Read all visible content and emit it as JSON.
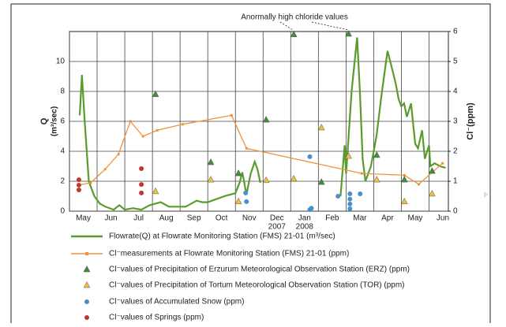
{
  "chart_data": {
    "type": "line",
    "annotation": "Anormally high chloride values",
    "y_label": [
      "Q",
      "(m³/sec)"
    ],
    "y2_label": "Cl⁻(ppm)",
    "xlim": [
      0,
      13.7
    ],
    "xticks": [
      {
        "value": 0,
        "label": "May"
      },
      {
        "value": 1,
        "label": "Jun"
      },
      {
        "value": 2,
        "label": "Jul"
      },
      {
        "value": 3,
        "label": "Aug"
      },
      {
        "value": 4,
        "label": "Sep"
      },
      {
        "value": 5,
        "label": "Oct"
      },
      {
        "value": 6,
        "label": "Nov"
      },
      {
        "value": 7,
        "label": "Dec",
        "year": "2007"
      },
      {
        "value": 8,
        "label": "Jan",
        "year": "2008"
      },
      {
        "value": 9,
        "label": "Feb"
      },
      {
        "value": 10,
        "label": "Mar"
      },
      {
        "value": 11,
        "label": "Apr"
      },
      {
        "value": 12,
        "label": "May"
      },
      {
        "value": 13,
        "label": "Jun"
      }
    ],
    "ylim": [
      0,
      12
    ],
    "yticks": [
      0,
      2,
      4,
      6,
      8,
      10
    ],
    "y2lim": [
      0,
      6
    ],
    "y2ticks": [
      0,
      1,
      2,
      3,
      4,
      5,
      6
    ],
    "grid": true,
    "series": [
      {
        "name": "Flowrate(Q) at Flowrate Monitoring Station (FMS) 21-01 (m³/sec)",
        "color": "#5a9b2e",
        "style": "line",
        "axis": "y",
        "x": [
          0.37,
          0.45,
          0.55,
          0.7,
          0.9,
          1.1,
          1.3,
          1.6,
          1.8,
          2.0,
          2.3,
          2.6,
          2.9,
          3.1,
          3.3,
          3.6,
          3.9,
          4.2,
          4.6,
          4.8,
          5.0,
          5.3,
          5.6,
          5.8,
          6.0,
          6.15,
          6.25,
          6.4,
          6.55,
          6.7,
          6.8,
          6.9,
          7.2,
          9.8,
          9.95,
          10.0,
          10.05,
          10.2,
          10.4,
          10.5,
          10.6,
          10.7,
          10.9,
          11.1,
          11.3,
          11.5,
          11.6,
          11.8,
          11.9,
          12.0,
          12.1,
          12.2,
          12.35,
          12.5,
          12.6,
          12.75,
          12.85,
          13.0,
          13.05,
          13.2,
          13.4,
          13.6
        ],
        "values": [
          6.4,
          9.1,
          6.0,
          2.0,
          1.0,
          0.5,
          0.3,
          0.1,
          0.4,
          0.1,
          0.2,
          0.1,
          0.4,
          0.5,
          0.6,
          0.3,
          0.3,
          0.3,
          0.7,
          0.6,
          0.6,
          0.8,
          1.0,
          1.1,
          1.2,
          1.9,
          2.6,
          1.1,
          2.5,
          3.3,
          2.8,
          1.9,
          null,
          1.0,
          4.4,
          2.5,
          3.8,
          8.0,
          11.6,
          8.0,
          3.5,
          2.0,
          3.0,
          5.0,
          8.0,
          10.7,
          10.0,
          8.5,
          7.5,
          7.0,
          7.2,
          6.3,
          7.2,
          4.5,
          4.2,
          5.4,
          3.5,
          4.4,
          3.0,
          3.2,
          3.0,
          2.9
        ]
      },
      {
        "name": "Cl⁻measurements at Flowrate Monitoring Station (FMS) 21-01 (ppm)",
        "color": "#f0923a",
        "style": "line-marker",
        "axis": "y2",
        "x": [
          0.34,
          0.77,
          1.29,
          1.77,
          2.2,
          2.66,
          3.17,
          4.09,
          5.86,
          6.4,
          10.57,
          12.11,
          12.63,
          13.49
        ],
        "values": [
          0.87,
          0.95,
          1.4,
          1.9,
          3.0,
          2.5,
          2.7,
          2.9,
          3.2,
          2.1,
          1.26,
          1.2,
          0.9,
          1.6
        ]
      },
      {
        "name": "Cl⁻values of Precipitation of Erzurum Meteorological Observation Station (ERZ)  (ppm)",
        "color": "#3f8f3a",
        "style": "triangle",
        "axis": "y2",
        "x": [
          3.11,
          5.11,
          6.11,
          7.11,
          8.11,
          9.11,
          10.09,
          11.11,
          12.11,
          13.11
        ],
        "values": [
          3.9,
          1.63,
          1.26,
          3.05,
          5.9,
          0.97,
          5.92,
          1.87,
          1.05,
          1.34
        ]
      },
      {
        "name": "Cl⁻values of Precipitation of Tortum Meteorological Observation Station (TOR)  (ppm)",
        "color": "#f2bd45",
        "style": "triangle",
        "axis": "y2",
        "x": [
          3.11,
          5.11,
          6.11,
          7.11,
          8.11,
          9.11,
          10.09,
          11.11,
          12.11,
          13.11
        ],
        "values": [
          0.66,
          1.05,
          0.32,
          1.03,
          1.08,
          2.79,
          1.84,
          1.05,
          0.32,
          0.58
        ]
      },
      {
        "name": "Cl⁻values of Accumulated Snow (ppm)",
        "color": "#4a90c8",
        "style": "circle",
        "axis": "y2",
        "x": [
          6.37,
          6.4,
          8.69,
          8.69,
          8.75,
          9.71,
          10.14,
          10.14,
          10.14,
          10.14,
          10.51
        ],
        "values": [
          0.61,
          0.32,
          1.82,
          0.05,
          0.1,
          0.5,
          0.58,
          0.4,
          0.24,
          0.08,
          0.58
        ]
      },
      {
        "name": "Cl⁻values of Springs (ppm)",
        "color": "#c0392b",
        "style": "circle",
        "axis": "y2",
        "x": [
          0.34,
          0.34,
          0.34,
          2.6,
          2.6,
          2.6
        ],
        "values": [
          1.05,
          0.87,
          0.71,
          1.42,
          0.89,
          0.61
        ]
      }
    ]
  }
}
